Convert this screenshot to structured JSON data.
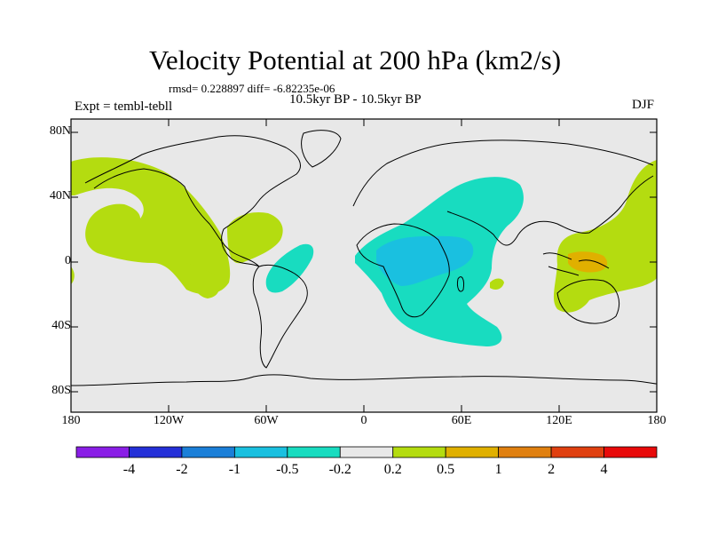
{
  "title": "Velocity Potential at 200 hPa (km2/s)",
  "stats": "rmsd= 0.228897 diff= -6.82235e-06",
  "experiment": "Expt = tembl-tebll",
  "period": "10.5kyr BP - 10.5kyr BP",
  "season": "DJF",
  "lat_labels": [
    "80N",
    "40N",
    "0",
    "40S",
    "80S"
  ],
  "lon_labels": [
    "180",
    "120W",
    "60W",
    "0",
    "60E",
    "120E",
    "180"
  ],
  "colorbar": {
    "labels": [
      "-4",
      "-2",
      "-1",
      "-0.5",
      "-0.2",
      "0.2",
      "0.5",
      "1",
      "2",
      "4"
    ],
    "colors": [
      "#8a1ee6",
      "#2430d8",
      "#1b7fd8",
      "#1ac0e0",
      "#18dcc0",
      "#e8e8e8",
      "#b4dc10",
      "#e0b000",
      "#e08010",
      "#e04010",
      "#e80a0a"
    ]
  },
  "chart_data": {
    "type": "map",
    "projection": "cylindrical equidistant",
    "variable": "velocity potential anomaly at 200 hPa",
    "units": "km2/s",
    "lon_range": [
      -180,
      180
    ],
    "lat_range": [
      -90,
      90
    ],
    "contour_levels": [
      -4,
      -2,
      -1,
      -0.5,
      -0.2,
      0.2,
      0.5,
      1,
      2,
      4
    ],
    "regions": [
      {
        "name": "Pacific / western Americas",
        "range": "0.2 to 0.5",
        "color": "#b4dc10"
      },
      {
        "name": "Caribbean / Gulf region",
        "range": "0.2 to 0.5",
        "color": "#b4dc10"
      },
      {
        "name": "Western Pacific / Maritime Continent",
        "range": "0.2 to 0.5",
        "color": "#b4dc10"
      },
      {
        "name": "Indonesia / New Guinea core",
        "range": "0.5 to 1",
        "color": "#e0b000"
      },
      {
        "name": "Africa / Arabia / Indian Ocean",
        "range": "-0.5 to -0.2",
        "color": "#18dcc0"
      },
      {
        "name": "Central Africa core",
        "range": "-1 to -0.5",
        "color": "#1ac0e0"
      },
      {
        "name": "Eastern South America / tropical Atlantic",
        "range": "-0.5 to -0.2",
        "color": "#18dcc0"
      },
      {
        "name": "Southern Indian Ocean patch",
        "range": "0.2 to 0.5",
        "color": "#b4dc10"
      }
    ]
  }
}
